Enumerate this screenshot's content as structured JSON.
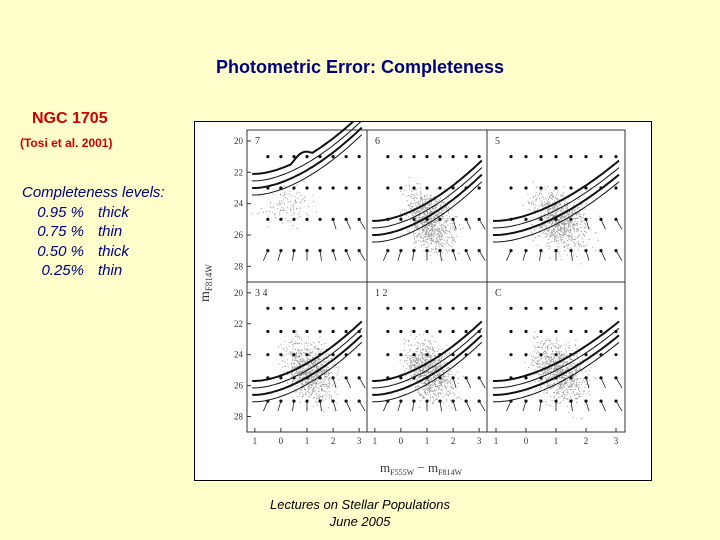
{
  "slide": {
    "title": "Photometric Error: Completeness",
    "object_name": "NGC 1705",
    "reference": "(Tosi et al. 2001)",
    "levels_title": "Completeness levels:",
    "levels": [
      {
        "percent": "0.95 %",
        "line": "thick"
      },
      {
        "percent": "0.75 %",
        "line": "thin"
      },
      {
        "percent": "0.50 %",
        "line": "thick"
      },
      {
        "percent": "0.25%",
        "line": "thin"
      }
    ],
    "footer_line1": "Lectures on Stellar Populations",
    "footer_line2": "June 2005"
  },
  "figure": {
    "y_label": "m",
    "y_label_sub": "F814W",
    "x_label": "m",
    "x_label_sub1": "F555W",
    "x_label_mid": " − m",
    "x_label_sub2": "F814W",
    "y_ticks_top": [
      "20",
      "22",
      "24",
      "26",
      "28"
    ],
    "y_ticks_bottom": [
      "20",
      "22",
      "24",
      "26",
      "28"
    ],
    "x_ticks": [
      "1",
      "0",
      "1",
      "2",
      "3"
    ],
    "panels": [
      {
        "label": "7"
      },
      {
        "label": "6"
      },
      {
        "label": "5"
      },
      {
        "label": "3 4"
      },
      {
        "label": "1 2"
      },
      {
        "label": "C"
      }
    ]
  }
}
